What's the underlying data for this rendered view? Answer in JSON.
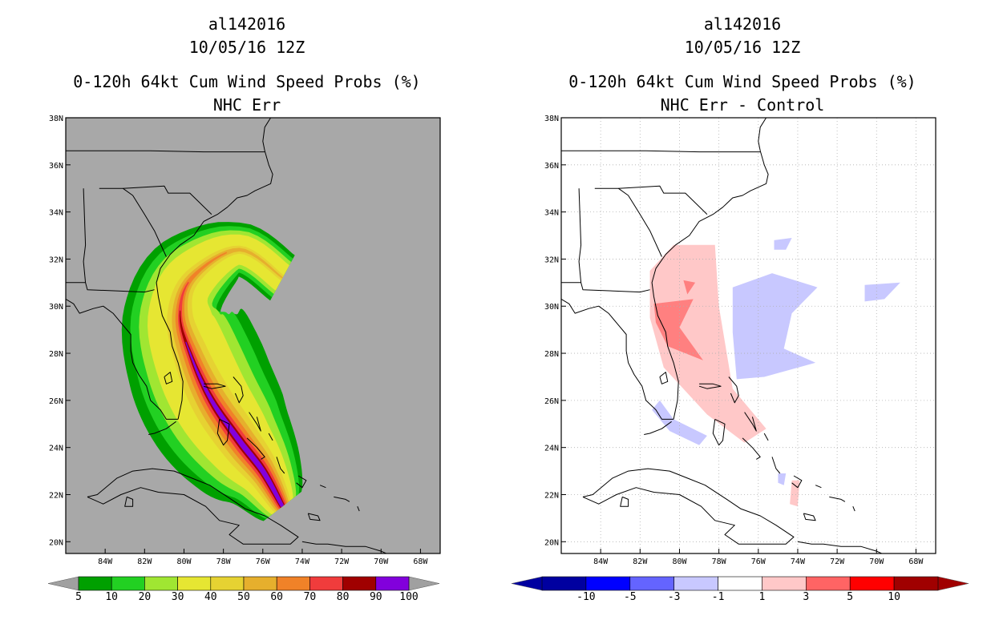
{
  "panels": [
    {
      "id": "left",
      "storm": "al142016",
      "datetime": "10/05/16 12Z",
      "product": "0-120h 64kt Cum Wind Speed Probs (%)",
      "subtitle": "NHC Err",
      "background": "#a8a8a8",
      "grid": false
    },
    {
      "id": "right",
      "storm": "al142016",
      "datetime": "10/05/16 12Z",
      "product": "0-120h 64kt Cum Wind Speed Probs (%)",
      "subtitle": "NHC Err - Control",
      "background": "#ffffff",
      "grid": true
    }
  ],
  "chart_data": [
    {
      "type": "heatmap",
      "title": "al142016 10/05/16 12Z 0-120h 64kt Cum Wind Speed Probs (%) NHC Err",
      "xlabel": "",
      "ylabel": "",
      "xlim": [
        -86,
        -67
      ],
      "ylim": [
        19.5,
        38
      ],
      "x_ticks": [
        "84W",
        "82W",
        "80W",
        "78W",
        "76W",
        "74W",
        "72W",
        "70W",
        "68W"
      ],
      "y_ticks": [
        "20N",
        "22N",
        "24N",
        "26N",
        "28N",
        "30N",
        "32N",
        "34N",
        "36N",
        "38N"
      ],
      "colorbar": {
        "labels": [
          "5",
          "10",
          "20",
          "30",
          "40",
          "50",
          "60",
          "70",
          "80",
          "90",
          "100"
        ],
        "colors": [
          "#00a000",
          "#22d022",
          "#a0e632",
          "#e6e632",
          "#e6d232",
          "#e6af2d",
          "#f08228",
          "#f03c3c",
          "#a00000",
          "#8200dc"
        ],
        "extend_low": "#a0a0a0",
        "extend_high": "#a0a0a0"
      },
      "track": [
        {
          "lon": -75.0,
          "lat": 21.5
        },
        {
          "lon": -76.0,
          "lat": 23.0
        },
        {
          "lon": -77.2,
          "lat": 24.3
        },
        {
          "lon": -78.6,
          "lat": 26.0
        },
        {
          "lon": -79.6,
          "lat": 27.8
        },
        {
          "lon": -80.2,
          "lat": 29.6
        },
        {
          "lon": -79.6,
          "lat": 31.2
        },
        {
          "lon": -77.2,
          "lat": 32.4
        },
        {
          "lon": -75.0,
          "lat": 31.2
        }
      ],
      "levels": [
        {
          "min": 5,
          "color": "#00a000",
          "max_width_deg": 3.4
        },
        {
          "min": 10,
          "color": "#22d022",
          "max_width_deg": 2.9
        },
        {
          "min": 20,
          "color": "#a0e632",
          "max_width_deg": 2.4
        },
        {
          "min": 30,
          "color": "#e6e632",
          "max_width_deg": 1.9
        },
        {
          "min": 40,
          "color": "#e6d232",
          "max_width_deg": 1.4
        },
        {
          "min": 50,
          "color": "#e6af2d",
          "max_width_deg": 1.1
        },
        {
          "min": 60,
          "color": "#f08228",
          "max_width_deg": 0.85
        },
        {
          "min": 70,
          "color": "#f03c3c",
          "max_width_deg": 0.6
        },
        {
          "min": 80,
          "color": "#a00000",
          "max_width_deg": 0.38
        },
        {
          "min": 90,
          "color": "#8200dc",
          "max_width_deg": 0.25
        }
      ]
    },
    {
      "type": "heatmap",
      "title": "al142016 10/05/16 12Z 0-120h 64kt Cum Wind Speed Probs (%) NHC Err - Control",
      "xlabel": "",
      "ylabel": "",
      "xlim": [
        -86,
        -67
      ],
      "ylim": [
        19.5,
        38
      ],
      "x_ticks": [
        "84W",
        "82W",
        "80W",
        "78W",
        "76W",
        "74W",
        "72W",
        "70W",
        "68W"
      ],
      "y_ticks": [
        "20N",
        "22N",
        "24N",
        "26N",
        "28N",
        "30N",
        "32N",
        "34N",
        "36N",
        "38N"
      ],
      "colorbar": {
        "labels": [
          "-10",
          "-5",
          "-3",
          "-1",
          "1",
          "3",
          "5",
          "10"
        ],
        "colors": [
          "#0000a0",
          "#0000ff",
          "#6464ff",
          "#c8c8ff",
          "#ffffff",
          "#ffc8c8",
          "#ff6464",
          "#ff0000",
          "#a00000"
        ],
        "extend_low": "#0000a0",
        "extend_high": "#a00000"
      },
      "positive_regions": [
        {
          "level": "1 to 3",
          "color": "#ffc8c8",
          "points": [
            [
              -81.5,
              31.5
            ],
            [
              -80.3,
              32.6
            ],
            [
              -78.2,
              32.6
            ],
            [
              -78.0,
              30.0
            ],
            [
              -77.3,
              26.5
            ],
            [
              -75.6,
              24.8
            ],
            [
              -76.7,
              24.2
            ],
            [
              -78.6,
              25.4
            ],
            [
              -80.8,
              27.4
            ],
            [
              -81.5,
              29.5
            ]
          ]
        },
        {
          "level": "3 to 5",
          "color": "#ff8080",
          "points": [
            [
              -81.3,
              30.1
            ],
            [
              -79.3,
              30.3
            ],
            [
              -80.0,
              29.1
            ],
            [
              -78.8,
              27.7
            ],
            [
              -80.6,
              28.3
            ],
            [
              -81.2,
              29.3
            ]
          ]
        },
        {
          "level": "3 to 5",
          "color": "#ff8080",
          "points": [
            [
              -79.8,
              31.1
            ],
            [
              -79.2,
              31.0
            ],
            [
              -79.6,
              30.5
            ]
          ]
        },
        {
          "level": "1 to 3",
          "color": "#ffc8c8",
          "points": [
            [
              -74.3,
              22.6
            ],
            [
              -73.9,
              22.6
            ],
            [
              -74.0,
              21.5
            ],
            [
              -74.4,
              21.6
            ]
          ]
        }
      ],
      "negative_regions": [
        {
          "level": "-1 to -3",
          "color": "#c8c8ff",
          "points": [
            [
              -77.3,
              30.8
            ],
            [
              -75.3,
              31.4
            ],
            [
              -73.0,
              30.8
            ],
            [
              -74.3,
              29.7
            ],
            [
              -74.7,
              28.2
            ],
            [
              -73.1,
              27.6
            ],
            [
              -75.7,
              27.0
            ],
            [
              -77.1,
              26.9
            ],
            [
              -77.3,
              28.9
            ]
          ]
        },
        {
          "level": "-1 to -3",
          "color": "#c8c8ff",
          "points": [
            [
              -70.6,
              30.9
            ],
            [
              -68.8,
              31.0
            ],
            [
              -69.6,
              30.3
            ],
            [
              -70.6,
              30.2
            ]
          ]
        },
        {
          "level": "-1 to -3",
          "color": "#c8c8ff",
          "points": [
            [
              -75.2,
              32.8
            ],
            [
              -74.3,
              32.9
            ],
            [
              -74.6,
              32.4
            ],
            [
              -75.2,
              32.4
            ]
          ]
        },
        {
          "level": "-1 to -3",
          "color": "#c8c8ff",
          "points": [
            [
              -81.0,
              26.0
            ],
            [
              -80.3,
              25.2
            ],
            [
              -78.6,
              24.5
            ],
            [
              -79.0,
              24.1
            ],
            [
              -80.5,
              24.7
            ],
            [
              -81.4,
              25.6
            ]
          ]
        },
        {
          "level": "-1 to -3",
          "color": "#c8c8ff",
          "points": [
            [
              -75.0,
              22.9
            ],
            [
              -74.6,
              22.9
            ],
            [
              -74.7,
              22.4
            ],
            [
              -75.0,
              22.5
            ]
          ]
        }
      ]
    }
  ]
}
